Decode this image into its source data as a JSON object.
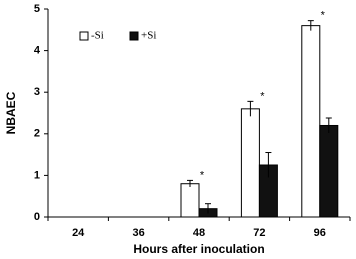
{
  "chart_data": {
    "type": "bar",
    "y_label": "NBAEC",
    "x_label": "Hours after inoculation",
    "categories": [
      "24",
      "36",
      "48",
      "72",
      "96"
    ],
    "series": [
      {
        "name": "-Si",
        "color": "#ffffff",
        "values": [
          null,
          null,
          0.8,
          2.6,
          4.6
        ],
        "errors": [
          null,
          null,
          0.08,
          0.18,
          0.12
        ]
      },
      {
        "name": "+Si",
        "color": "#111111",
        "values": [
          null,
          null,
          0.2,
          1.25,
          2.2
        ],
        "errors": [
          null,
          null,
          0.12,
          0.3,
          0.18
        ]
      }
    ],
    "significance": [
      null,
      null,
      "*",
      "*",
      "*"
    ],
    "ylim": [
      0,
      5
    ],
    "yticks": [
      0,
      1,
      2,
      3,
      4,
      5
    ],
    "legend": "upper-left"
  }
}
